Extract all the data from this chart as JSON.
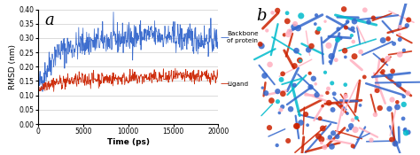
{
  "title_a": "a",
  "title_b": "b",
  "xlabel": "Time (ps)",
  "ylabel": "RMSD (nm)",
  "xlim": [
    0,
    20000
  ],
  "ylim": [
    0,
    0.4
  ],
  "yticks": [
    0,
    0.05,
    0.1,
    0.15,
    0.2,
    0.25,
    0.3,
    0.35,
    0.4
  ],
  "xticks": [
    0,
    5000,
    10000,
    15000,
    20000
  ],
  "legend_backbone": "Backbone\nof protein",
  "legend_ligand": "Ligand",
  "color_backbone": "#3366CC",
  "color_ligand": "#CC2200",
  "background_color": "#ffffff",
  "n_points": 500,
  "seed": 42,
  "backbone_noise": 0.025,
  "ligand_noise": 0.012
}
